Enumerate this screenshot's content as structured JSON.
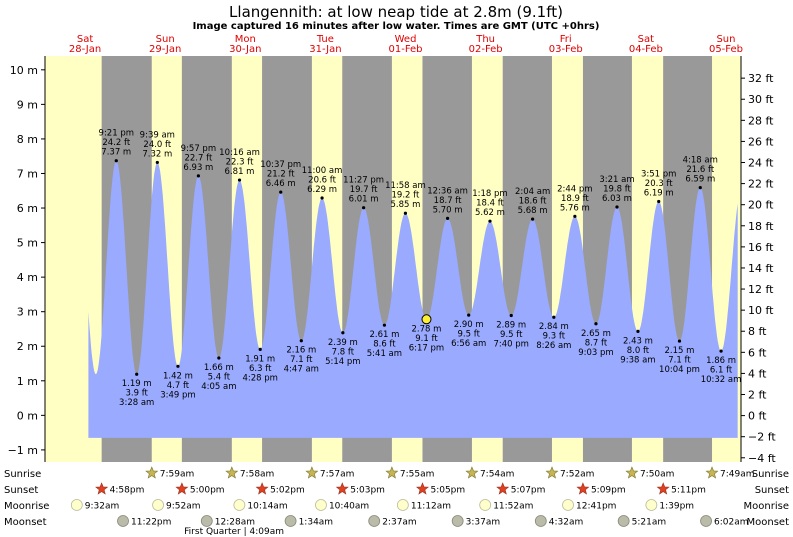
{
  "header": {
    "title": "Llangennith: at low  neap tide at 2.8m (9.1ft)",
    "subtitle": "Image captured 16 minutes after low water. Times are GMT (UTC +0hrs)"
  },
  "days": [
    {
      "weekday": "Sat",
      "date": "28-Jan"
    },
    {
      "weekday": "Sun",
      "date": "29-Jan"
    },
    {
      "weekday": "Mon",
      "date": "30-Jan"
    },
    {
      "weekday": "Tue",
      "date": "31-Jan"
    },
    {
      "weekday": "Wed",
      "date": "01-Feb"
    },
    {
      "weekday": "Thu",
      "date": "02-Feb"
    },
    {
      "weekday": "Fri",
      "date": "03-Feb"
    },
    {
      "weekday": "Sat",
      "date": "04-Feb"
    },
    {
      "weekday": "Sun",
      "date": "05-Feb"
    }
  ],
  "chart_data": {
    "type": "area",
    "title": "Llangennith: at low  neap tide at 2.8m (9.1ft)",
    "subtitle": "Image captured 16 minutes after low water. Times are GMT (UTC +0hrs)",
    "x_unit": "hours from 00:00 on 28-Jan (GMT)",
    "x_range": [
      "28-Jan",
      "05-Feb"
    ],
    "ylim_m": [
      -1.35,
      10.4
    ],
    "ylim_ft": [
      -4.4,
      34.1
    ],
    "y_ticks_m": [
      -1,
      0,
      1,
      2,
      3,
      4,
      5,
      6,
      7,
      8,
      9,
      10
    ],
    "y_tick_labels_m": [
      "−1 m",
      "0 m",
      "1 m",
      "2 m",
      "3 m",
      "4 m",
      "5 m",
      "6 m",
      "7 m",
      "8 m",
      "9 m",
      "10 m"
    ],
    "y_ticks_ft": [
      -4,
      -2,
      0,
      2,
      4,
      6,
      8,
      10,
      12,
      14,
      16,
      18,
      20,
      22,
      24,
      26,
      28,
      30,
      32
    ],
    "y_tick_labels_ft": [
      "−4 ft",
      "−2 ft",
      "0 ft",
      "2 ft",
      "4 ft",
      "6 ft",
      "8 ft",
      "10 ft",
      "12 ft",
      "14 ft",
      "16 ft",
      "18 ft",
      "20 ft",
      "22 ft",
      "24 ft",
      "26 ft",
      "28 ft",
      "30 ft",
      "32 ft"
    ],
    "fill_color": "#99aaff",
    "day_color": "#ffffc4",
    "night_color": "#999999",
    "day_label_color": "#e00000",
    "series": [
      {
        "points": [
          {
            "type": "high",
            "date": "28-Jan",
            "time": "9:21 pm",
            "x": 21.35,
            "m": 7.37,
            "ft": "24.2 ft",
            "m_label": "7.37 m"
          },
          {
            "type": "low",
            "date": "29-Jan",
            "time": "3:28 am",
            "x": 27.47,
            "m": 1.19,
            "ft": "3.9 ft",
            "m_label": "1.19 m"
          },
          {
            "type": "high",
            "date": "29-Jan",
            "time": "9:39 am",
            "x": 33.65,
            "m": 7.32,
            "ft": "24.0 ft",
            "m_label": "7.32 m"
          },
          {
            "type": "low",
            "date": "29-Jan",
            "time": "3:49 pm",
            "x": 39.82,
            "m": 1.42,
            "ft": "4.7 ft",
            "m_label": "1.42 m"
          },
          {
            "type": "high",
            "date": "29-Jan",
            "time": "9:57 pm",
            "x": 45.95,
            "m": 6.93,
            "ft": "22.7 ft",
            "m_label": "6.93 m"
          },
          {
            "type": "low",
            "date": "30-Jan",
            "time": "4:05 am",
            "x": 52.08,
            "m": 1.66,
            "ft": "5.4 ft",
            "m_label": "1.66 m"
          },
          {
            "type": "high",
            "date": "30-Jan",
            "time": "10:16 am",
            "x": 58.27,
            "m": 6.81,
            "ft": "22.3 ft",
            "m_label": "6.81 m"
          },
          {
            "type": "low",
            "date": "30-Jan",
            "time": "4:28 pm",
            "x": 64.47,
            "m": 1.91,
            "ft": "6.3 ft",
            "m_label": "1.91 m"
          },
          {
            "type": "high",
            "date": "30-Jan",
            "time": "10:37 pm",
            "x": 70.62,
            "m": 6.46,
            "ft": "21.2 ft",
            "m_label": "6.46 m"
          },
          {
            "type": "low",
            "date": "31-Jan",
            "time": "4:47 am",
            "x": 76.78,
            "m": 2.16,
            "ft": "7.1 ft",
            "m_label": "2.16 m"
          },
          {
            "type": "high",
            "date": "31-Jan",
            "time": "11:00 am",
            "x": 83.0,
            "m": 6.29,
            "ft": "20.6 ft",
            "m_label": "6.29 m"
          },
          {
            "type": "low",
            "date": "31-Jan",
            "time": "5:14 pm",
            "x": 89.23,
            "m": 2.39,
            "ft": "7.8 ft",
            "m_label": "2.39 m"
          },
          {
            "type": "high",
            "date": "31-Jan",
            "time": "11:27 pm",
            "x": 95.45,
            "m": 6.01,
            "ft": "19.7 ft",
            "m_label": "6.01 m"
          },
          {
            "type": "low",
            "date": "01-Feb",
            "time": "5:41 am",
            "x": 101.68,
            "m": 2.61,
            "ft": "8.6 ft",
            "m_label": "2.61 m"
          },
          {
            "type": "high",
            "date": "01-Feb",
            "time": "11:58 am",
            "x": 107.97,
            "m": 5.85,
            "ft": "19.2 ft",
            "m_label": "5.85 m"
          },
          {
            "type": "low",
            "date": "01-Feb",
            "time": "6:17 pm",
            "x": 114.28,
            "m": 2.78,
            "ft": "9.1 ft",
            "m_label": "2.78 m",
            "current": true
          },
          {
            "type": "high",
            "date": "02-Feb",
            "time": "12:36 am",
            "x": 120.6,
            "m": 5.7,
            "ft": "18.7 ft",
            "m_label": "5.70 m"
          },
          {
            "type": "low",
            "date": "02-Feb",
            "time": "6:56 am",
            "x": 126.93,
            "m": 2.9,
            "ft": "9.5 ft",
            "m_label": "2.90 m"
          },
          {
            "type": "high",
            "date": "02-Feb",
            "time": "1:18 pm",
            "x": 133.3,
            "m": 5.62,
            "ft": "18.4 ft",
            "m_label": "5.62 m"
          },
          {
            "type": "low",
            "date": "02-Feb",
            "time": "7:40 pm",
            "x": 139.67,
            "m": 2.89,
            "ft": "9.5 ft",
            "m_label": "2.89 m"
          },
          {
            "type": "high",
            "date": "03-Feb",
            "time": "2:04 am",
            "x": 146.07,
            "m": 5.68,
            "ft": "18.6 ft",
            "m_label": "5.68 m"
          },
          {
            "type": "low",
            "date": "03-Feb",
            "time": "8:26 am",
            "x": 152.43,
            "m": 2.84,
            "ft": "9.3 ft",
            "m_label": "2.84 m"
          },
          {
            "type": "high",
            "date": "03-Feb",
            "time": "2:44 pm",
            "x": 158.73,
            "m": 5.76,
            "ft": "18.9 ft",
            "m_label": "5.76 m"
          },
          {
            "type": "low",
            "date": "03-Feb",
            "time": "9:03 pm",
            "x": 165.05,
            "m": 2.65,
            "ft": "8.7 ft",
            "m_label": "2.65 m"
          },
          {
            "type": "high",
            "date": "04-Feb",
            "time": "3:21 am",
            "x": 171.35,
            "m": 6.03,
            "ft": "19.8 ft",
            "m_label": "6.03 m"
          },
          {
            "type": "low",
            "date": "04-Feb",
            "time": "9:38 am",
            "x": 177.63,
            "m": 2.43,
            "ft": "8.0 ft",
            "m_label": "2.43 m"
          },
          {
            "type": "high",
            "date": "04-Feb",
            "time": "3:51 pm",
            "x": 183.85,
            "m": 6.19,
            "ft": "20.3 ft",
            "m_label": "6.19 m"
          },
          {
            "type": "low",
            "date": "04-Feb",
            "time": "10:04 pm",
            "x": 190.07,
            "m": 2.15,
            "ft": "7.1 ft",
            "m_label": "2.15 m"
          },
          {
            "type": "high",
            "date": "05-Feb",
            "time": "4:18 am",
            "x": 196.3,
            "m": 6.59,
            "ft": "21.6 ft",
            "m_label": "6.59 m"
          },
          {
            "type": "low",
            "date": "05-Feb",
            "time": "10:32 am",
            "x": 202.53,
            "m": 1.86,
            "ft": "6.1 ft",
            "m_label": "1.86 m"
          }
        ]
      }
    ],
    "sunrise_hours": [
      31.98,
      55.97,
      79.95,
      103.92,
      127.9,
      151.87,
      175.83,
      199.82
    ],
    "sunset_hours": [
      16.97,
      41.0,
      65.03,
      89.05,
      113.08,
      137.12,
      161.15,
      185.18
    ],
    "night_until_hour": 7.98,
    "chart_end_hour": 208.5
  },
  "events": {
    "rows": [
      {
        "label": "Sunrise",
        "items": [
          {
            "time": "7:59am",
            "x": 31.98
          },
          {
            "time": "7:58am",
            "x": 55.97
          },
          {
            "time": "7:57am",
            "x": 79.95
          },
          {
            "time": "7:55am",
            "x": 103.92
          },
          {
            "time": "7:54am",
            "x": 127.9
          },
          {
            "time": "7:52am",
            "x": 151.87
          },
          {
            "time": "7:50am",
            "x": 175.83
          },
          {
            "time": "7:49am",
            "x": 199.82
          }
        ]
      },
      {
        "label": "Sunset",
        "items": [
          {
            "time": "4:58pm",
            "x": 16.97
          },
          {
            "time": "5:00pm",
            "x": 41.0
          },
          {
            "time": "5:02pm",
            "x": 65.03
          },
          {
            "time": "5:03pm",
            "x": 89.05
          },
          {
            "time": "5:05pm",
            "x": 113.08
          },
          {
            "time": "5:07pm",
            "x": 137.12
          },
          {
            "time": "5:09pm",
            "x": 161.15
          },
          {
            "time": "5:11pm",
            "x": 185.18
          }
        ]
      },
      {
        "label": "Moonrise",
        "items": [
          {
            "time": "9:32am",
            "x": 9.53
          },
          {
            "time": "9:52am",
            "x": 33.87
          },
          {
            "time": "10:14am",
            "x": 58.23
          },
          {
            "time": "10:40am",
            "x": 82.67
          },
          {
            "time": "11:12am",
            "x": 107.2
          },
          {
            "time": "11:52am",
            "x": 131.87
          },
          {
            "time": "12:41pm",
            "x": 156.68
          },
          {
            "time": "1:39pm",
            "x": 181.65
          }
        ]
      },
      {
        "label": "Moonset",
        "items": [
          {
            "time": "11:22pm",
            "x": 23.37
          },
          {
            "time": "12:28am",
            "x": 48.47
          },
          {
            "time": "1:34am",
            "x": 73.57
          },
          {
            "time": "2:37am",
            "x": 98.62
          },
          {
            "time": "3:37am",
            "x": 123.62
          },
          {
            "time": "4:32am",
            "x": 148.53
          },
          {
            "time": "5:21am",
            "x": 173.35
          },
          {
            "time": "6:02am",
            "x": 198.03
          }
        ]
      }
    ],
    "moon_phase": {
      "text": "First Quarter | 4:09am",
      "x": 52.15
    }
  }
}
